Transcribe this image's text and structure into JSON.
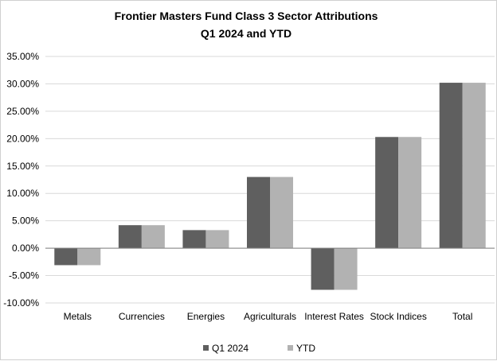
{
  "chart_data": {
    "type": "bar",
    "title": "Frontier Masters Fund Class 3 Sector Attributions",
    "subtitle": "Q1 2024 and YTD",
    "categories": [
      "Metals",
      "Currencies",
      "Energies",
      "Agriculturals",
      "Interest Rates",
      "Stock Indices",
      "Total"
    ],
    "series": [
      {
        "name": "Q1 2024",
        "color": "#5f5f5f",
        "values": [
          -3.1,
          4.2,
          3.3,
          13.0,
          -7.6,
          20.3,
          30.2
        ]
      },
      {
        "name": "YTD",
        "color": "#b2b2b2",
        "values": [
          -3.1,
          4.2,
          3.3,
          13.0,
          -7.6,
          20.3,
          30.2
        ]
      }
    ],
    "ylim": [
      -10,
      35
    ],
    "ytick_step": 5,
    "ytick_labels": [
      "-10.00%",
      "-5.00%",
      "0.00%",
      "5.00%",
      "10.00%",
      "15.00%",
      "20.00%",
      "25.00%",
      "30.00%",
      "35.00%"
    ],
    "grid": true,
    "legend": "bottom"
  }
}
